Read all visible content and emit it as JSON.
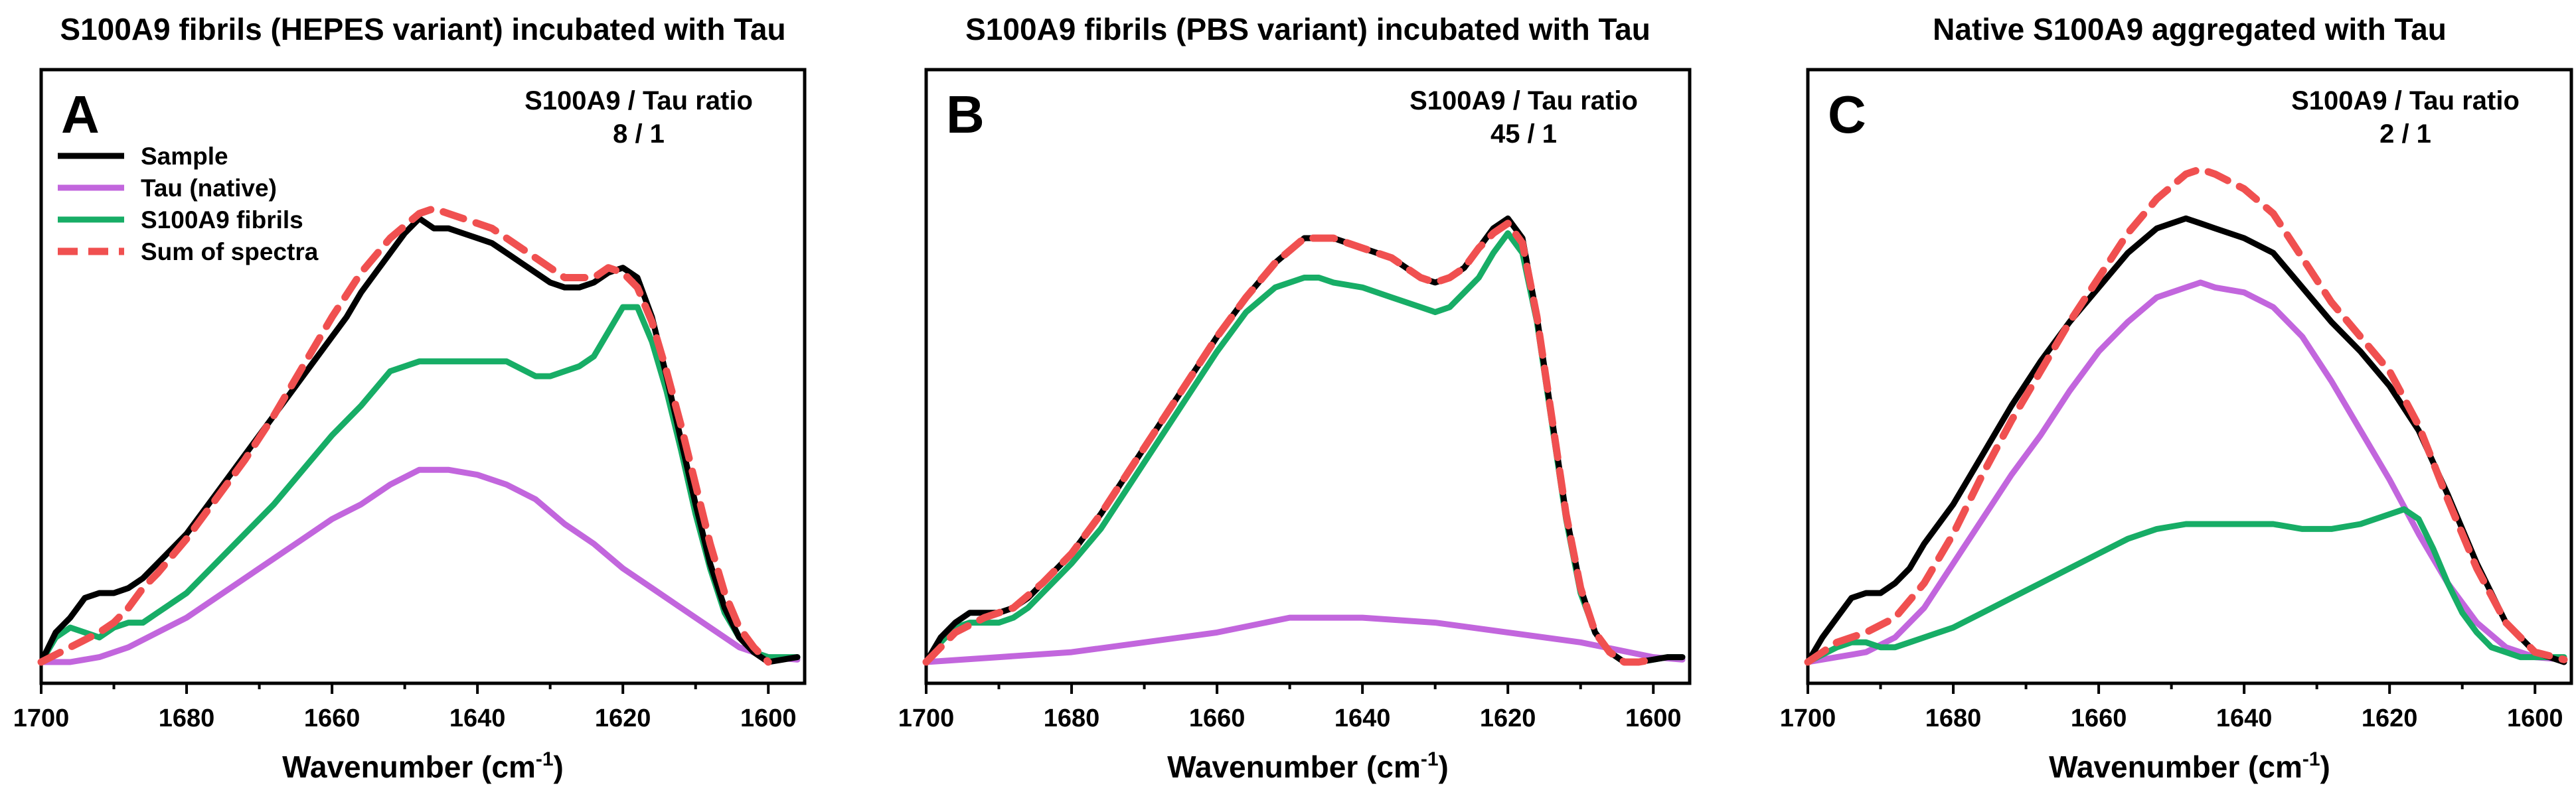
{
  "colors": {
    "sample": "#000000",
    "tau": "#c266dd",
    "fibrils": "#17ad66",
    "sum": "#f05050"
  },
  "legend": {
    "sample": "Sample",
    "tau": "Tau (native)",
    "fibrils": "S100A9 fibrils",
    "sum": "Sum of spectra"
  },
  "chart_data": [
    {
      "type": "line",
      "panel": "A",
      "title": "S100A9 fibrils (HEPES variant) incubated with Tau",
      "ratio_label": "S100A9 / Tau ratio",
      "ratio_value": "8 / 1",
      "xlabel": "Wavenumber (cm",
      "xlabel_sup": "-1",
      "xlabel_close": ")",
      "ylabel": "",
      "xlim": [
        1700,
        1595
      ],
      "ylim": [
        0,
        1
      ],
      "x_ticks": [
        "1700",
        "1680",
        "1660",
        "1640",
        "1620",
        "1600"
      ],
      "series": [
        {
          "key": "sample",
          "name": "Sample",
          "style": "solid",
          "x": [
            1700,
            1698,
            1696,
            1694,
            1692,
            1690,
            1688,
            1686,
            1684,
            1682,
            1680,
            1678,
            1676,
            1674,
            1672,
            1670,
            1668,
            1666,
            1664,
            1662,
            1660,
            1658,
            1656,
            1654,
            1652,
            1650,
            1648,
            1646,
            1644,
            1642,
            1640,
            1638,
            1636,
            1634,
            1632,
            1630,
            1628,
            1626,
            1624,
            1622,
            1620,
            1618,
            1616,
            1614,
            1612,
            1610,
            1608,
            1606,
            1604,
            1602,
            1600,
            1598,
            1596
          ],
          "y": [
            0.0,
            0.06,
            0.09,
            0.13,
            0.14,
            0.14,
            0.15,
            0.17,
            0.2,
            0.23,
            0.26,
            0.3,
            0.34,
            0.38,
            0.42,
            0.46,
            0.5,
            0.54,
            0.58,
            0.62,
            0.66,
            0.7,
            0.75,
            0.79,
            0.83,
            0.87,
            0.9,
            0.88,
            0.88,
            0.87,
            0.86,
            0.85,
            0.83,
            0.81,
            0.79,
            0.77,
            0.76,
            0.76,
            0.77,
            0.79,
            0.8,
            0.78,
            0.7,
            0.58,
            0.45,
            0.32,
            0.2,
            0.11,
            0.05,
            0.02,
            0.0,
            0.005,
            0.01
          ]
        },
        {
          "key": "tau",
          "name": "Tau (native)",
          "style": "solid",
          "x": [
            1700,
            1696,
            1692,
            1688,
            1684,
            1680,
            1676,
            1672,
            1668,
            1664,
            1660,
            1656,
            1652,
            1648,
            1646,
            1644,
            1640,
            1636,
            1632,
            1628,
            1624,
            1620,
            1616,
            1612,
            1608,
            1604,
            1600,
            1596
          ],
          "y": [
            0.0,
            0.0,
            0.01,
            0.03,
            0.06,
            0.09,
            0.13,
            0.17,
            0.21,
            0.25,
            0.29,
            0.32,
            0.36,
            0.39,
            0.39,
            0.39,
            0.38,
            0.36,
            0.33,
            0.28,
            0.24,
            0.19,
            0.15,
            0.11,
            0.07,
            0.03,
            0.01,
            0.005
          ]
        },
        {
          "key": "fibrils",
          "name": "S100A9 fibrils",
          "style": "solid",
          "x": [
            1700,
            1698,
            1696,
            1694,
            1692,
            1690,
            1688,
            1686,
            1684,
            1680,
            1676,
            1672,
            1668,
            1664,
            1660,
            1656,
            1652,
            1648,
            1646,
            1644,
            1640,
            1636,
            1632,
            1630,
            1628,
            1626,
            1624,
            1622,
            1620,
            1618,
            1616,
            1614,
            1612,
            1610,
            1608,
            1606,
            1604,
            1602,
            1600,
            1598,
            1596
          ],
          "y": [
            0.0,
            0.05,
            0.07,
            0.06,
            0.05,
            0.07,
            0.08,
            0.08,
            0.1,
            0.14,
            0.2,
            0.26,
            0.32,
            0.39,
            0.46,
            0.52,
            0.59,
            0.61,
            0.61,
            0.61,
            0.61,
            0.61,
            0.58,
            0.58,
            0.59,
            0.6,
            0.62,
            0.67,
            0.72,
            0.72,
            0.65,
            0.55,
            0.43,
            0.3,
            0.19,
            0.1,
            0.05,
            0.02,
            0.01,
            0.01,
            0.01
          ]
        },
        {
          "key": "sum",
          "name": "Sum of spectra",
          "style": "dashed",
          "x": [
            1700,
            1696,
            1692,
            1690,
            1688,
            1686,
            1684,
            1680,
            1676,
            1672,
            1668,
            1664,
            1660,
            1656,
            1652,
            1648,
            1646,
            1644,
            1642,
            1640,
            1638,
            1636,
            1632,
            1628,
            1624,
            1622,
            1620,
            1618,
            1616,
            1614,
            1612,
            1610,
            1608,
            1606,
            1604,
            1602,
            1600
          ],
          "y": [
            0.0,
            0.03,
            0.06,
            0.08,
            0.11,
            0.15,
            0.18,
            0.25,
            0.33,
            0.41,
            0.5,
            0.6,
            0.7,
            0.79,
            0.86,
            0.91,
            0.92,
            0.91,
            0.9,
            0.89,
            0.88,
            0.86,
            0.82,
            0.78,
            0.78,
            0.8,
            0.79,
            0.76,
            0.69,
            0.59,
            0.48,
            0.36,
            0.24,
            0.14,
            0.07,
            0.03,
            0.0
          ]
        }
      ]
    },
    {
      "type": "line",
      "panel": "B",
      "title": "S100A9 fibrils (PBS variant) incubated with Tau",
      "ratio_label": "S100A9 / Tau ratio",
      "ratio_value": "45 / 1",
      "xlabel": "Wavenumber (cm",
      "xlabel_sup": "-1",
      "xlabel_close": ")",
      "ylabel": "",
      "xlim": [
        1700,
        1595
      ],
      "ylim": [
        0,
        1
      ],
      "x_ticks": [
        "1700",
        "1680",
        "1660",
        "1640",
        "1620",
        "1600"
      ],
      "series": [
        {
          "key": "sample",
          "name": "Sample",
          "style": "solid",
          "x": [
            1700,
            1698,
            1696,
            1694,
            1692,
            1690,
            1688,
            1686,
            1684,
            1680,
            1676,
            1672,
            1668,
            1664,
            1660,
            1656,
            1652,
            1648,
            1646,
            1644,
            1640,
            1636,
            1632,
            1630,
            1628,
            1626,
            1624,
            1622,
            1620,
            1618,
            1616,
            1614,
            1612,
            1610,
            1608,
            1606,
            1604,
            1602,
            1600,
            1598,
            1596
          ],
          "y": [
            0.0,
            0.05,
            0.08,
            0.1,
            0.1,
            0.1,
            0.11,
            0.13,
            0.16,
            0.22,
            0.3,
            0.39,
            0.48,
            0.57,
            0.66,
            0.74,
            0.81,
            0.86,
            0.86,
            0.86,
            0.84,
            0.82,
            0.78,
            0.77,
            0.78,
            0.8,
            0.84,
            0.88,
            0.9,
            0.86,
            0.7,
            0.5,
            0.3,
            0.15,
            0.06,
            0.02,
            0.0,
            0.0,
            0.005,
            0.01,
            0.01
          ]
        },
        {
          "key": "tau",
          "name": "Tau (native)",
          "style": "solid",
          "x": [
            1700,
            1690,
            1680,
            1670,
            1660,
            1650,
            1646,
            1640,
            1630,
            1620,
            1610,
            1600,
            1596
          ],
          "y": [
            0.0,
            0.01,
            0.02,
            0.04,
            0.06,
            0.09,
            0.09,
            0.09,
            0.08,
            0.06,
            0.04,
            0.01,
            0.005
          ]
        },
        {
          "key": "fibrils",
          "name": "S100A9 fibrils",
          "style": "solid",
          "x": [
            1700,
            1698,
            1696,
            1694,
            1692,
            1690,
            1688,
            1686,
            1684,
            1680,
            1676,
            1672,
            1668,
            1664,
            1660,
            1656,
            1652,
            1648,
            1646,
            1644,
            1640,
            1636,
            1632,
            1630,
            1628,
            1626,
            1624,
            1622,
            1620,
            1618,
            1616,
            1614,
            1612,
            1610,
            1608,
            1606,
            1604,
            1602,
            1600,
            1598,
            1596
          ],
          "y": [
            0.0,
            0.04,
            0.07,
            0.08,
            0.08,
            0.08,
            0.09,
            0.11,
            0.14,
            0.2,
            0.27,
            0.36,
            0.45,
            0.54,
            0.63,
            0.71,
            0.76,
            0.78,
            0.78,
            0.77,
            0.76,
            0.74,
            0.72,
            0.71,
            0.72,
            0.75,
            0.78,
            0.83,
            0.87,
            0.83,
            0.69,
            0.49,
            0.29,
            0.14,
            0.06,
            0.02,
            0.0,
            0.0,
            0.005,
            0.01,
            0.01
          ]
        },
        {
          "key": "sum",
          "name": "Sum of spectra",
          "style": "dashed",
          "x": [
            1700,
            1696,
            1692,
            1688,
            1684,
            1680,
            1676,
            1672,
            1668,
            1664,
            1660,
            1656,
            1652,
            1648,
            1646,
            1644,
            1640,
            1636,
            1632,
            1630,
            1628,
            1626,
            1624,
            1622,
            1620,
            1618,
            1616,
            1614,
            1612,
            1610,
            1608,
            1606,
            1604,
            1602,
            1600
          ],
          "y": [
            0.0,
            0.06,
            0.09,
            0.11,
            0.16,
            0.22,
            0.3,
            0.39,
            0.48,
            0.57,
            0.66,
            0.74,
            0.81,
            0.86,
            0.86,
            0.86,
            0.84,
            0.82,
            0.78,
            0.77,
            0.78,
            0.8,
            0.84,
            0.87,
            0.89,
            0.85,
            0.7,
            0.5,
            0.3,
            0.15,
            0.06,
            0.02,
            0.0,
            0.0,
            0.005
          ]
        }
      ]
    },
    {
      "type": "line",
      "panel": "C",
      "title": "Native S100A9 aggregated with Tau",
      "ratio_label": "S100A9 / Tau ratio",
      "ratio_value": "2 / 1",
      "xlabel": "Wavenumber (cm",
      "xlabel_sup": "-1",
      "xlabel_close": ")",
      "ylabel": "",
      "xlim": [
        1700,
        1595
      ],
      "ylim": [
        0,
        1
      ],
      "x_ticks": [
        "1700",
        "1680",
        "1660",
        "1640",
        "1620",
        "1600"
      ],
      "series": [
        {
          "key": "sample",
          "name": "Sample",
          "style": "solid",
          "x": [
            1700,
            1698,
            1696,
            1694,
            1692,
            1690,
            1688,
            1686,
            1684,
            1680,
            1676,
            1672,
            1668,
            1664,
            1660,
            1656,
            1652,
            1648,
            1646,
            1644,
            1640,
            1636,
            1632,
            1628,
            1624,
            1620,
            1616,
            1612,
            1608,
            1604,
            1600,
            1598,
            1596
          ],
          "y": [
            0.0,
            0.05,
            0.09,
            0.13,
            0.14,
            0.14,
            0.16,
            0.19,
            0.24,
            0.32,
            0.42,
            0.52,
            0.61,
            0.69,
            0.76,
            0.83,
            0.88,
            0.9,
            0.89,
            0.88,
            0.86,
            0.83,
            0.76,
            0.69,
            0.63,
            0.56,
            0.47,
            0.34,
            0.2,
            0.08,
            0.02,
            0.01,
            0.0
          ]
        },
        {
          "key": "tau",
          "name": "Tau (native)",
          "style": "solid",
          "x": [
            1700,
            1696,
            1692,
            1688,
            1684,
            1680,
            1676,
            1672,
            1668,
            1664,
            1660,
            1656,
            1652,
            1648,
            1646,
            1644,
            1640,
            1636,
            1632,
            1628,
            1624,
            1620,
            1616,
            1612,
            1608,
            1604,
            1600,
            1596
          ],
          "y": [
            0.0,
            0.01,
            0.02,
            0.05,
            0.11,
            0.2,
            0.29,
            0.38,
            0.46,
            0.55,
            0.63,
            0.69,
            0.74,
            0.76,
            0.77,
            0.76,
            0.75,
            0.72,
            0.66,
            0.57,
            0.47,
            0.37,
            0.26,
            0.16,
            0.08,
            0.03,
            0.01,
            0.005
          ]
        },
        {
          "key": "fibrils",
          "name": "S100A9 fibrils",
          "style": "solid",
          "x": [
            1700,
            1696,
            1694,
            1692,
            1690,
            1688,
            1686,
            1684,
            1680,
            1676,
            1672,
            1668,
            1664,
            1660,
            1656,
            1652,
            1648,
            1646,
            1644,
            1640,
            1636,
            1632,
            1628,
            1624,
            1620,
            1618,
            1616,
            1614,
            1612,
            1610,
            1608,
            1606,
            1604,
            1602,
            1600,
            1598,
            1596
          ],
          "y": [
            0.0,
            0.03,
            0.04,
            0.04,
            0.03,
            0.03,
            0.04,
            0.05,
            0.07,
            0.1,
            0.13,
            0.16,
            0.19,
            0.22,
            0.25,
            0.27,
            0.28,
            0.28,
            0.28,
            0.28,
            0.28,
            0.27,
            0.27,
            0.28,
            0.3,
            0.31,
            0.29,
            0.23,
            0.16,
            0.1,
            0.06,
            0.03,
            0.02,
            0.01,
            0.01,
            0.01,
            0.01
          ]
        },
        {
          "key": "sum",
          "name": "Sum of spectra",
          "style": "dashed",
          "x": [
            1700,
            1696,
            1692,
            1688,
            1684,
            1680,
            1676,
            1672,
            1668,
            1664,
            1660,
            1656,
            1652,
            1648,
            1646,
            1644,
            1640,
            1636,
            1632,
            1628,
            1624,
            1620,
            1616,
            1612,
            1608,
            1604,
            1600,
            1596
          ],
          "y": [
            0.0,
            0.04,
            0.06,
            0.09,
            0.16,
            0.26,
            0.38,
            0.49,
            0.59,
            0.69,
            0.78,
            0.87,
            0.94,
            0.99,
            1.0,
            0.99,
            0.96,
            0.91,
            0.82,
            0.73,
            0.66,
            0.59,
            0.48,
            0.33,
            0.19,
            0.08,
            0.02,
            0.005
          ]
        }
      ]
    }
  ]
}
